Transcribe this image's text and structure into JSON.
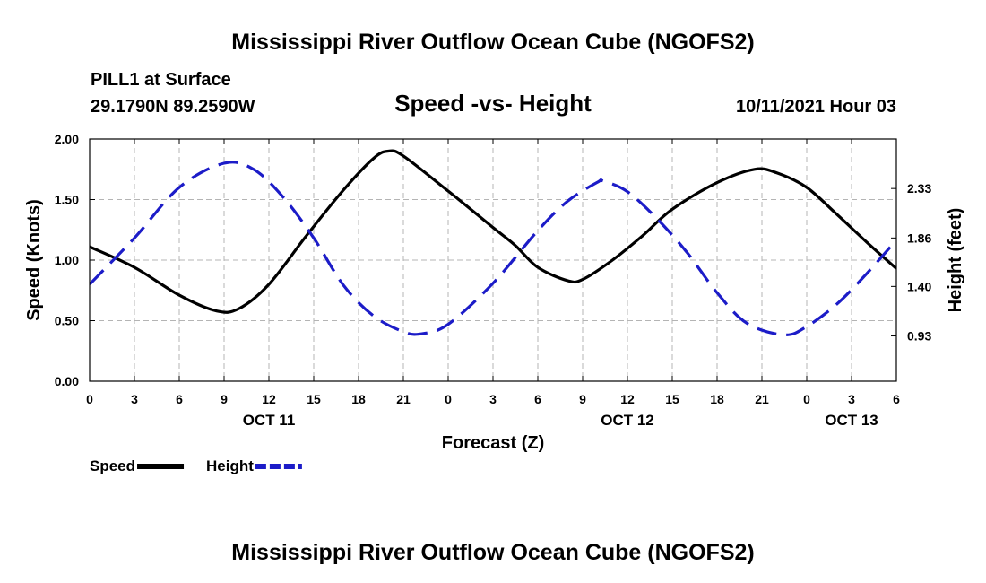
{
  "header": {
    "title": "Mississippi River Outflow Ocean Cube (NGOFS2)",
    "footer_title": "Mississippi River Outflow Ocean Cube (NGOFS2)",
    "station": "PILL1 at Surface",
    "coords": "29.1790N  89.2590W",
    "chart_heading": "Speed -vs- Height",
    "timestamp": "10/11/2021 Hour 03"
  },
  "chart_data": {
    "type": "line",
    "title": "Speed -vs- Height",
    "xlabel": "Forecast (Z)",
    "ylabel": "Speed (Knots)",
    "y2label": "Height (feet)",
    "xlim": [
      0,
      54
    ],
    "ylim": [
      0,
      2.0
    ],
    "y2lim": [
      0.5,
      2.8
    ],
    "grid": true,
    "x_ticks": [
      {
        "x": 0,
        "label": "0"
      },
      {
        "x": 3,
        "label": "3"
      },
      {
        "x": 6,
        "label": "6"
      },
      {
        "x": 9,
        "label": "9"
      },
      {
        "x": 12,
        "label": "12"
      },
      {
        "x": 15,
        "label": "15"
      },
      {
        "x": 18,
        "label": "18"
      },
      {
        "x": 21,
        "label": "21"
      },
      {
        "x": 24,
        "label": "0"
      },
      {
        "x": 27,
        "label": "3"
      },
      {
        "x": 30,
        "label": "6"
      },
      {
        "x": 33,
        "label": "9"
      },
      {
        "x": 36,
        "label": "12"
      },
      {
        "x": 39,
        "label": "15"
      },
      {
        "x": 42,
        "label": "18"
      },
      {
        "x": 45,
        "label": "21"
      },
      {
        "x": 48,
        "label": "0"
      },
      {
        "x": 51,
        "label": "3"
      },
      {
        "x": 54,
        "label": "6"
      }
    ],
    "date_labels": [
      {
        "x": 12,
        "label": "OCT 11"
      },
      {
        "x": 36,
        "label": "OCT 12"
      },
      {
        "x": 51,
        "label": "OCT 13"
      }
    ],
    "y_ticks": [
      {
        "y": 0.0,
        "label": "0.00"
      },
      {
        "y": 0.5,
        "label": "0.50"
      },
      {
        "y": 1.0,
        "label": "1.00"
      },
      {
        "y": 1.5,
        "label": "1.50"
      },
      {
        "y": 2.0,
        "label": "2.00"
      }
    ],
    "y2_ticks": [
      {
        "y": 0.93,
        "label": "0.93"
      },
      {
        "y": 1.4,
        "label": "1.40"
      },
      {
        "y": 1.86,
        "label": "1.86"
      },
      {
        "y": 2.33,
        "label": "2.33"
      }
    ],
    "series": [
      {
        "name": "Speed",
        "axis": "left",
        "color": "#000000",
        "dash": "solid",
        "x": [
          0,
          3,
          6,
          8.5,
          10,
          12,
          14.5,
          17,
          19,
          20,
          21,
          24,
          27,
          28.5,
          30,
          32,
          33,
          35,
          37,
          39,
          42,
          44.5,
          46,
          48,
          50,
          52,
          54
        ],
        "values": [
          1.11,
          0.94,
          0.71,
          0.58,
          0.6,
          0.8,
          1.2,
          1.58,
          1.84,
          1.9,
          1.86,
          1.57,
          1.27,
          1.12,
          0.94,
          0.83,
          0.84,
          1.0,
          1.2,
          1.42,
          1.64,
          1.75,
          1.72,
          1.6,
          1.38,
          1.15,
          0.93
        ]
      },
      {
        "name": "Height",
        "axis": "right",
        "color": "#1c1cc8",
        "dash": "dashed",
        "x": [
          0,
          3,
          6,
          9,
          11,
          13,
          15,
          17,
          19,
          21,
          22.2,
          24,
          27,
          30,
          32,
          34,
          34.4,
          36,
          38,
          40,
          42,
          44,
          46.5,
          48,
          50,
          52,
          54
        ],
        "values": [
          1.42,
          1.86,
          2.34,
          2.57,
          2.51,
          2.24,
          1.86,
          1.41,
          1.12,
          0.97,
          0.95,
          1.04,
          1.43,
          1.93,
          2.21,
          2.39,
          2.4,
          2.3,
          2.04,
          1.72,
          1.34,
          1.05,
          0.94,
          1.02,
          1.23,
          1.52,
          1.84
        ]
      }
    ],
    "legend_position": "bottom-left"
  }
}
